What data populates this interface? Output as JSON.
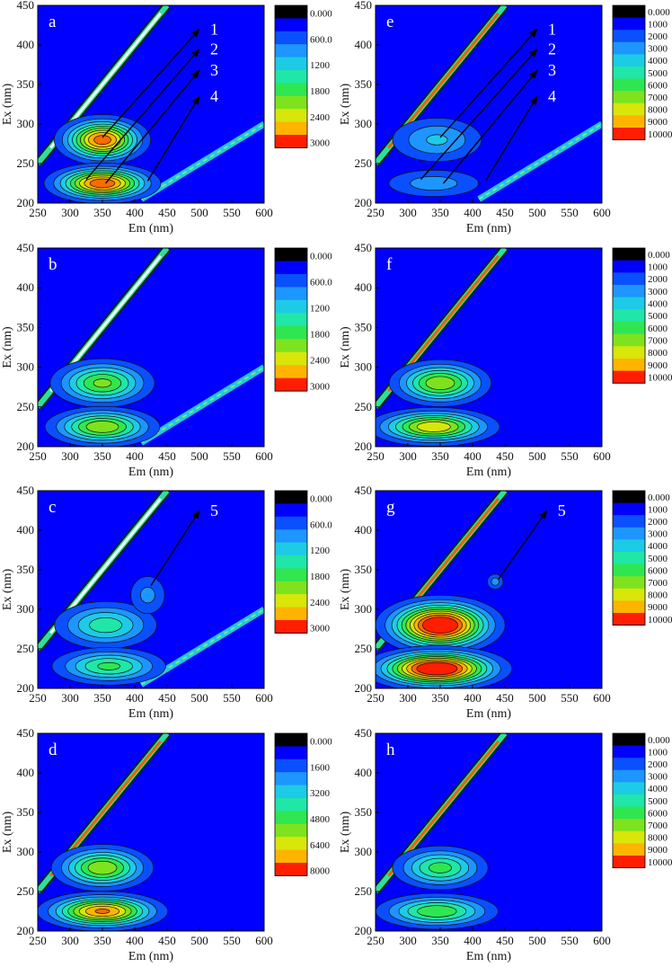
{
  "chart_data": [
    {
      "type": "heatmap",
      "panel": "a",
      "xlabel": "Em (nm)",
      "ylabel": "Ex (nm)",
      "xlim": [
        250,
        600
      ],
      "ylim": [
        200,
        450
      ],
      "xticks": [
        250,
        300,
        350,
        400,
        450,
        500,
        550,
        600
      ],
      "yticks": [
        200,
        250,
        300,
        350,
        400,
        450
      ],
      "colorbar": [
        "0.000",
        "600.0",
        "1200",
        "1800",
        "2400",
        "3000"
      ],
      "zmax": 3000,
      "peaks": [
        {
          "em": 350,
          "ex": 280,
          "peak": 2900,
          "sx": 35,
          "sy": 15
        },
        {
          "em": 350,
          "ex": 225,
          "peak": 3000,
          "sx": 42,
          "sy": 12
        }
      ],
      "rayleigh": true,
      "second_order": true,
      "annotations": [
        {
          "label": "1",
          "from": [
            350,
            283
          ],
          "to": [
            500,
            420
          ]
        },
        {
          "label": "2",
          "from": [
            325,
            230
          ],
          "to": [
            500,
            395
          ]
        },
        {
          "label": "3",
          "from": [
            355,
            225
          ],
          "to": [
            500,
            368
          ]
        },
        {
          "label": "4",
          "from": [
            420,
            228
          ],
          "to": [
            500,
            335
          ]
        }
      ]
    },
    {
      "type": "heatmap",
      "panel": "b",
      "xlabel": "Em (nm)",
      "ylabel": "Ex (nm)",
      "xlim": [
        250,
        600
      ],
      "ylim": [
        200,
        450
      ],
      "xticks": [
        250,
        300,
        350,
        400,
        450,
        500,
        550,
        600
      ],
      "yticks": [
        200,
        250,
        300,
        350,
        400,
        450
      ],
      "colorbar": [
        "0.000",
        "600.0",
        "1200",
        "1800",
        "2400",
        "3000"
      ],
      "zmax": 3000,
      "peaks": [
        {
          "em": 350,
          "ex": 280,
          "peak": 1900,
          "sx": 42,
          "sy": 16
        },
        {
          "em": 350,
          "ex": 225,
          "peak": 2100,
          "sx": 45,
          "sy": 13
        }
      ],
      "rayleigh": true,
      "second_order": true,
      "annotations": []
    },
    {
      "type": "heatmap",
      "panel": "c",
      "xlabel": "Em (nm)",
      "ylabel": "Ex (nm)",
      "xlim": [
        250,
        600
      ],
      "ylim": [
        200,
        450
      ],
      "xticks": [
        250,
        300,
        350,
        400,
        450,
        500,
        550,
        600
      ],
      "yticks": [
        200,
        250,
        300,
        350,
        400,
        450
      ],
      "colorbar": [
        "0.000",
        "600.0",
        "1200",
        "1800",
        "2400",
        "3000"
      ],
      "zmax": 3000,
      "peaks": [
        {
          "em": 355,
          "ex": 280,
          "peak": 1400,
          "sx": 45,
          "sy": 17
        },
        {
          "em": 360,
          "ex": 228,
          "peak": 1600,
          "sx": 48,
          "sy": 13
        },
        {
          "em": 420,
          "ex": 318,
          "peak": 700,
          "sx": 20,
          "sy": 18
        }
      ],
      "rayleigh": true,
      "second_order": true,
      "annotations": [
        {
          "label": "5",
          "from": [
            425,
            330
          ],
          "to": [
            500,
            425
          ]
        }
      ]
    },
    {
      "type": "heatmap",
      "panel": "d",
      "xlabel": "Em (nm)",
      "ylabel": "Ex (nm)",
      "xlim": [
        250,
        600
      ],
      "ylim": [
        200,
        450
      ],
      "xticks": [
        250,
        300,
        350,
        400,
        450,
        500,
        550,
        600
      ],
      "yticks": [
        200,
        250,
        300,
        350,
        400,
        450
      ],
      "colorbar": [
        "0.000",
        "1600",
        "3200",
        "4800",
        "6400",
        "8000"
      ],
      "zmax": 8000,
      "peaks": [
        {
          "em": 350,
          "ex": 280,
          "peak": 5600,
          "sx": 40,
          "sy": 15
        },
        {
          "em": 350,
          "ex": 225,
          "peak": 7400,
          "sx": 48,
          "sy": 12
        }
      ],
      "rayleigh": true,
      "second_order": false,
      "annotations": []
    },
    {
      "type": "heatmap",
      "panel": "e",
      "xlabel": "Em (nm)",
      "ylabel": "Ex (nm)",
      "xlim": [
        250,
        600
      ],
      "ylim": [
        200,
        450
      ],
      "xticks": [
        250,
        300,
        350,
        400,
        450,
        500,
        550,
        600
      ],
      "yticks": [
        200,
        250,
        300,
        350,
        400,
        450
      ],
      "colorbar": [
        "0.000",
        "1000",
        "2000",
        "3000",
        "4000",
        "5000",
        "6000",
        "7000",
        "8000",
        "9000",
        "10000"
      ],
      "zmax": 10000,
      "peaks": [
        {
          "em": 345,
          "ex": 280,
          "peak": 3200,
          "sx": 45,
          "sy": 18
        },
        {
          "em": 340,
          "ex": 225,
          "peak": 2600,
          "sx": 50,
          "sy": 12
        }
      ],
      "rayleigh": true,
      "second_order": true,
      "annotations": [
        {
          "label": "1",
          "from": [
            350,
            283
          ],
          "to": [
            500,
            420
          ]
        },
        {
          "label": "2",
          "from": [
            320,
            230
          ],
          "to": [
            500,
            395
          ]
        },
        {
          "label": "3",
          "from": [
            355,
            225
          ],
          "to": [
            500,
            368
          ]
        },
        {
          "label": "4",
          "from": [
            420,
            228
          ],
          "to": [
            500,
            335
          ]
        }
      ]
    },
    {
      "type": "heatmap",
      "panel": "f",
      "xlabel": "Em (nm)",
      "ylabel": "Ex (nm)",
      "xlim": [
        250,
        600
      ],
      "ylim": [
        200,
        450
      ],
      "xticks": [
        250,
        300,
        350,
        400,
        450,
        500,
        550,
        600
      ],
      "yticks": [
        200,
        250,
        300,
        350,
        400,
        450
      ],
      "colorbar": [
        "0.000",
        "1000",
        "2000",
        "3000",
        "4000",
        "5000",
        "6000",
        "7000",
        "8000",
        "9000",
        "10000"
      ],
      "zmax": 10000,
      "peaks": [
        {
          "em": 350,
          "ex": 280,
          "peak": 7000,
          "sx": 40,
          "sy": 15
        },
        {
          "em": 340,
          "ex": 225,
          "peak": 8000,
          "sx": 50,
          "sy": 12
        }
      ],
      "rayleigh": true,
      "second_order": false,
      "annotations": []
    },
    {
      "type": "heatmap",
      "panel": "g",
      "xlabel": "Em (nm)",
      "ylabel": "Ex (nm)",
      "xlim": [
        250,
        600
      ],
      "ylim": [
        200,
        450
      ],
      "xticks": [
        250,
        300,
        350,
        400,
        450,
        500,
        550,
        600
      ],
      "yticks": [
        200,
        250,
        300,
        350,
        400,
        450
      ],
      "colorbar": [
        "0.000",
        "1000",
        "2000",
        "3000",
        "4000",
        "5000",
        "6000",
        "7000",
        "8000",
        "9000",
        "10000"
      ],
      "zmax": 10000,
      "peaks": [
        {
          "em": 350,
          "ex": 280,
          "peak": 12000,
          "sx": 45,
          "sy": 17
        },
        {
          "em": 345,
          "ex": 225,
          "peak": 12000,
          "sx": 52,
          "sy": 13
        },
        {
          "em": 435,
          "ex": 335,
          "peak": 2500,
          "sx": 9,
          "sy": 7
        }
      ],
      "rayleigh": true,
      "second_order": false,
      "annotations": [
        {
          "label": "5",
          "from": [
            440,
            338
          ],
          "to": [
            515,
            425
          ]
        }
      ]
    },
    {
      "type": "heatmap",
      "panel": "h",
      "xlabel": "Em (nm)",
      "ylabel": "Ex (nm)",
      "xlim": [
        250,
        600
      ],
      "ylim": [
        200,
        450
      ],
      "xticks": [
        250,
        300,
        350,
        400,
        450,
        500,
        550,
        600
      ],
      "yticks": [
        200,
        250,
        300,
        350,
        400,
        450
      ],
      "colorbar": [
        "0.000",
        "1000",
        "2000",
        "3000",
        "4000",
        "5000",
        "6000",
        "7000",
        "8000",
        "9000",
        "10000"
      ],
      "zmax": 10000,
      "peaks": [
        {
          "em": 350,
          "ex": 280,
          "peak": 5500,
          "sx": 40,
          "sy": 15
        },
        {
          "em": 345,
          "ex": 225,
          "peak": 6000,
          "sx": 50,
          "sy": 12
        }
      ],
      "rayleigh": true,
      "second_order": false,
      "annotations": []
    }
  ]
}
